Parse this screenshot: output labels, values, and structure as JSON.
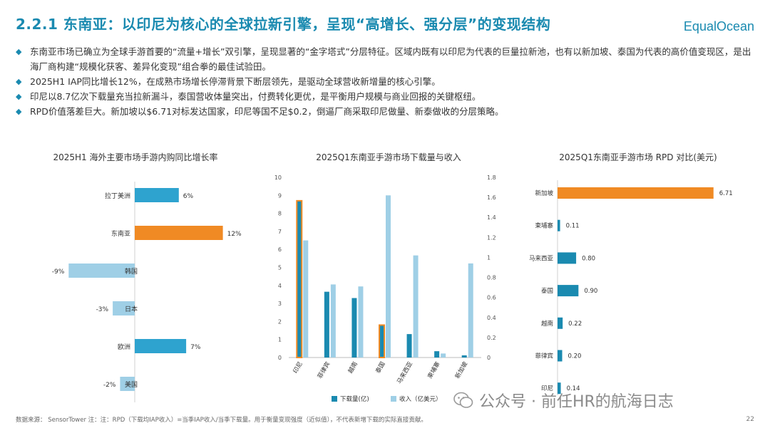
{
  "header": {
    "title": "2.2.1 东南亚：以印尼为核心的全球拉新引擎，呈现“高增长、强分层”的变现结构",
    "logo": "EqualOcean"
  },
  "bullets": [
    "东南亚市场已确立为全球手游首要的“流量+增长”双引擎，呈现显著的“金字塔式”分层特征。区域内既有以印尼为代表的巨量拉新池，也有以新加坡、泰国为代表的高价值变现区，是出海厂商构建“规模化获客、差异化变现”组合拳的最佳试验田。",
    "2025H1 IAP同比增长12%，在成熟市场增长停滞背景下断层领先，是驱动全球营收新增量的核心引擎。",
    "印尼以8.7亿次下载量充当拉新漏斗，泰国营收体量突出，付费转化更优，是平衡用户规模与商业回报的关键枢纽。",
    "RPD价值落差巨大。新加坡以$6.71对标发达国家，印尼等国不足$0.2，倒逼厂商采取印尼做量、新泰做收的分层策略。"
  ],
  "chart_data": [
    {
      "type": "bar",
      "orientation": "horizontal",
      "title": "2025H1 海外主要市场手游内购同比增长率",
      "categories": [
        "拉丁美洲",
        "东南亚",
        "韩国",
        "日本",
        "欧洲",
        "美国"
      ],
      "values": [
        6,
        12,
        -9,
        -3,
        7,
        -2
      ],
      "value_labels": [
        "6%",
        "12%",
        "-9%",
        "-3%",
        "7%",
        "-2%"
      ],
      "colors": [
        "#2ea3cf",
        "#f08a24",
        "#9fcfe6",
        "#9fcfe6",
        "#2ea3cf",
        "#9fcfe6"
      ]
    },
    {
      "type": "bar",
      "title": "2025Q1东南亚手游市场下载量与收入",
      "categories": [
        "印尼",
        "菲律宾",
        "越南",
        "泰国",
        "马来西亚",
        "柬埔寨",
        "新加坡"
      ],
      "series": [
        {
          "name": "下载量(亿)",
          "values": [
            8.7,
            3.65,
            3.3,
            1.8,
            1.3,
            0.35,
            0.12
          ],
          "axis": "left",
          "color": "#1a8ab0"
        },
        {
          "name": "收入（亿美元）",
          "values": [
            1.17,
            0.73,
            0.71,
            1.62,
            1.02,
            0.04,
            0.94
          ],
          "axis": "right",
          "color": "#9fcfe6"
        }
      ],
      "highlight": [
        "印尼",
        "泰国"
      ],
      "highlight_color": "#f08a24",
      "ylim": [
        0,
        10
      ],
      "y2lim": [
        0,
        1.8
      ],
      "yticks": [
        "0",
        "1",
        "2",
        "3",
        "4",
        "5",
        "6",
        "7",
        "8",
        "9",
        "10"
      ],
      "y2ticks": [
        "0",
        "0.2",
        "0.4",
        "0.6",
        "0.8",
        "1",
        "1.2",
        "1.4",
        "1.6",
        "1.8"
      ]
    },
    {
      "type": "bar",
      "orientation": "horizontal",
      "title": "2025Q1东南亚手游市场 RPD 对比(美元)",
      "categories": [
        "新加坡",
        "柬埔寨",
        "马来西亚",
        "泰国",
        "越南",
        "菲律宾",
        "印尼"
      ],
      "values": [
        6.71,
        0.11,
        0.8,
        0.9,
        0.22,
        0.2,
        0.14
      ],
      "value_labels": [
        "6.71",
        "0.11",
        "0.80",
        "0.90",
        "0.22",
        "0.20",
        "0.14"
      ],
      "colors": [
        "#f08a24",
        "#1a8ab0",
        "#1a8ab0",
        "#1a8ab0",
        "#1a8ab0",
        "#1a8ab0",
        "#1a8ab0"
      ]
    }
  ],
  "footer": {
    "source": "数据来源： SensorTower 注：注：RPD（下载均IAP收入）=当季IAP收入/当季下载量。用于衡量变现强度（近似值），不代表新增下载的实际直接贡献。",
    "watermark": "公众号 · 前任HR的航海日志",
    "page": "22"
  }
}
